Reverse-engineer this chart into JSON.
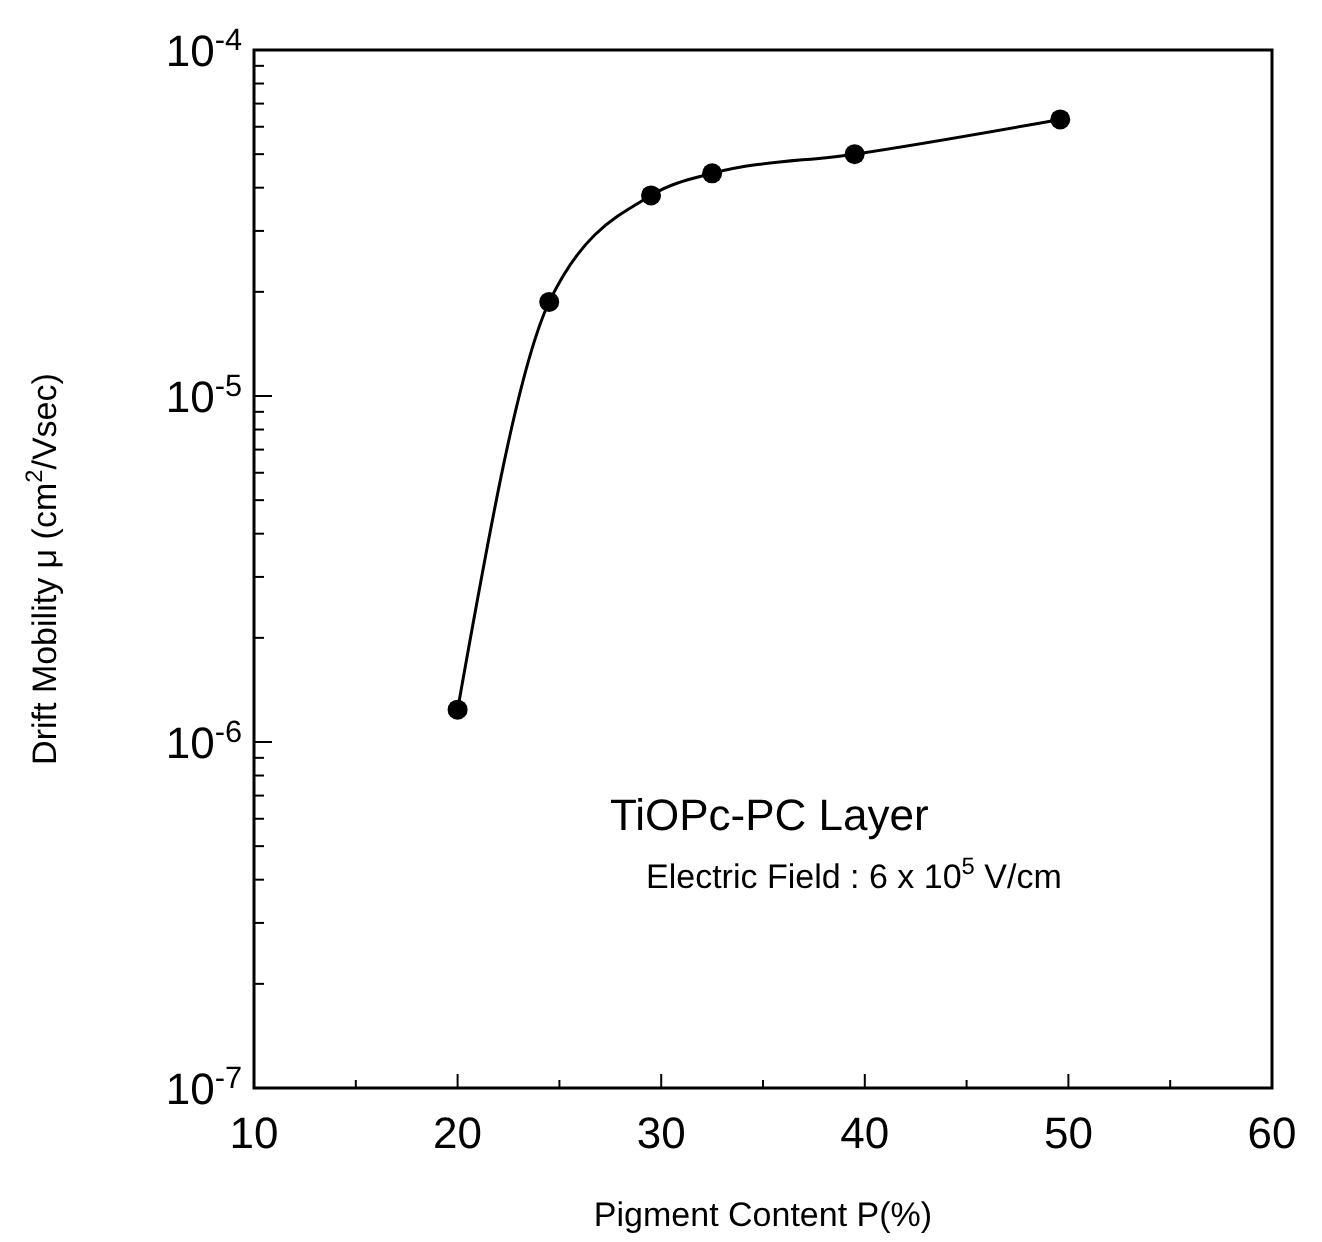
{
  "chart_data": {
    "type": "line",
    "xlabel": "Pigment Content P(%)",
    "ylabel": "Drift Mobility μ (cm$^{2}$/Vsec)",
    "x": [
      20,
      24.5,
      29.5,
      32.5,
      39.5,
      49.6
    ],
    "series": [
      {
        "color": "#000000",
        "values": [
          1.24e-06,
          1.87e-05,
          3.8e-05,
          4.4e-05,
          5e-05,
          6.3e-05
        ]
      }
    ],
    "log": "y",
    "marker": "circle",
    "line_style": "solid",
    "grid": false,
    "xlim": [
      10,
      60
    ],
    "xticks": [
      10,
      {
        "value": 15,
        "label": null
      },
      20,
      {
        "value": 25,
        "label": null
      },
      30,
      {
        "value": 35,
        "label": null
      },
      40,
      {
        "value": 45,
        "label": null
      },
      50,
      {
        "value": 55,
        "label": null
      },
      60
    ],
    "ylim": [
      1e-07,
      0.0001
    ],
    "yticks": [
      {
        "value": 1e-07,
        "label": "10$^{-7}$"
      },
      {
        "value": 2e-07,
        "label": null
      },
      {
        "value": 3e-07,
        "label": null
      },
      {
        "value": 4e-07,
        "label": null
      },
      {
        "value": 5e-07,
        "label": null
      },
      {
        "value": 6e-07,
        "label": null
      },
      {
        "value": 7e-07,
        "label": null
      },
      {
        "value": 8e-07,
        "label": null
      },
      {
        "value": 9e-07,
        "label": null
      },
      {
        "value": 1e-06,
        "label": "10$^{-6}$"
      },
      {
        "value": 2e-06,
        "label": null
      },
      {
        "value": 3e-06,
        "label": null
      },
      {
        "value": 4e-06,
        "label": null
      },
      {
        "value": 5e-06,
        "label": null
      },
      {
        "value": 6e-06,
        "label": null
      },
      {
        "value": 7e-06,
        "label": null
      },
      {
        "value": 8e-06,
        "label": null
      },
      {
        "value": 9e-06,
        "label": null
      },
      {
        "value": 1e-05,
        "label": "10$^{-5}$"
      },
      {
        "value": 2e-05,
        "label": null
      },
      {
        "value": 3e-05,
        "label": null
      },
      {
        "value": 4e-05,
        "label": null
      },
      {
        "value": 5e-05,
        "label": null
      },
      {
        "value": 6e-05,
        "label": null
      },
      {
        "value": 7e-05,
        "label": null
      },
      {
        "value": 8e-05,
        "label": null
      },
      {
        "value": 9e-05,
        "label": null
      },
      {
        "value": 0.0001,
        "label": "10$^{-4}$"
      }
    ],
    "annotations": [
      "TiOPc-PC  Layer",
      "Electric Field : 6 x 10$^{5}$ V/cm"
    ]
  }
}
